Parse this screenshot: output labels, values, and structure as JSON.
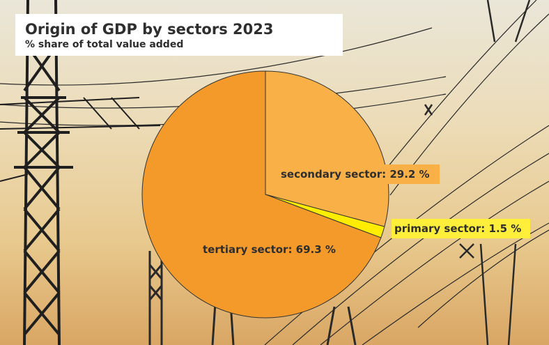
{
  "colors": {
    "tertiary": "#f39a2b",
    "secondary": "#f9b046",
    "primary": "#ffed00",
    "outline": "#333333",
    "label_box_secondary": "#f9b046",
    "label_box_primary": "#ffef3a"
  },
  "chart_data": {
    "type": "pie",
    "title": "Origin of GDP by sectors 2023",
    "subtitle": "% share of total value added",
    "slices": [
      {
        "label": "secondary sector: 29.2 %",
        "value": 29.2,
        "color": "#f9b046"
      },
      {
        "label": "primary sector: 1.5 %",
        "value": 1.5,
        "color": "#ffed00"
      },
      {
        "label": "tertiary sector: 69.3 %",
        "value": 69.3,
        "color": "#f39a2b"
      }
    ],
    "start_angle": "12 o'clock",
    "direction": "clockwise"
  }
}
